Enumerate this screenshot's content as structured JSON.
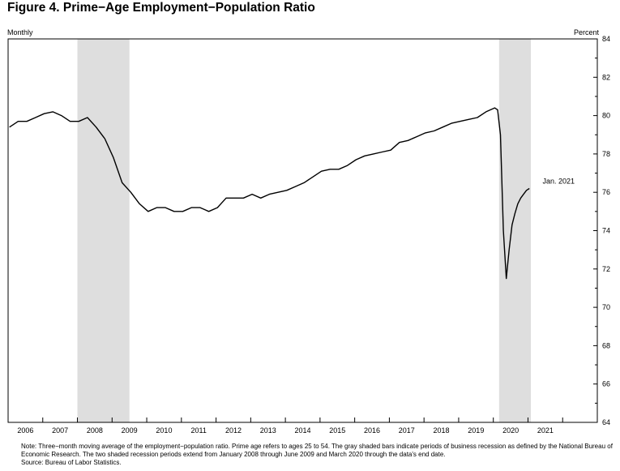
{
  "title": "Figure 4. Prime−Age Employment−Population Ratio",
  "frequency_label": "Monthly",
  "unit_label": "Percent",
  "note": "Note: Three−month moving average of the employment−population ratio. Prime age refers to ages 25 to 54. The gray shaded bars indicate periods of business recession as defined by the National Bureau of Economic Research. The two shaded recession periods extend from January 2008 through June 2009 and March 2020 through the data's end date.",
  "source": "Source: Bureau of Labor Statistics.",
  "colors": {
    "line": "#000000",
    "recession": "#dedede",
    "axis": "#000000"
  },
  "chart_data": {
    "type": "line",
    "title": "Figure 4. Prime−Age Employment−Population Ratio",
    "xlabel": "",
    "ylabel": "Percent",
    "xlim": [
      "2006-01",
      "2022-12"
    ],
    "ylim": [
      64,
      84
    ],
    "y_ticks": [
      64,
      66,
      68,
      70,
      72,
      74,
      76,
      78,
      80,
      82,
      84
    ],
    "x_tick_labels": [
      "2006",
      "2007",
      "2008",
      "2009",
      "2010",
      "2011",
      "2012",
      "2013",
      "2014",
      "2015",
      "2016",
      "2017",
      "2018",
      "2019",
      "2020",
      "2021"
    ],
    "grid": false,
    "recessions": [
      {
        "start": "2008-01",
        "end": "2009-06"
      },
      {
        "start": "2020-03",
        "end": "2021-01"
      }
    ],
    "annotation": {
      "text": "Jan. 2021",
      "x": "2021-01",
      "y": 76.2
    },
    "series": [
      {
        "x": [
          "2006-01",
          "2006-04",
          "2006-07",
          "2006-10",
          "2007-01",
          "2007-04",
          "2007-07",
          "2007-10",
          "2008-01",
          "2008-04",
          "2008-07",
          "2008-10",
          "2009-01",
          "2009-04",
          "2009-07",
          "2009-10",
          "2010-01",
          "2010-04",
          "2010-07",
          "2010-10",
          "2011-01",
          "2011-04",
          "2011-07",
          "2011-10",
          "2012-01",
          "2012-04",
          "2012-07",
          "2012-10",
          "2013-01",
          "2013-04",
          "2013-07",
          "2013-10",
          "2014-01",
          "2014-04",
          "2014-07",
          "2014-10",
          "2015-01",
          "2015-04",
          "2015-07",
          "2015-10",
          "2016-01",
          "2016-04",
          "2016-07",
          "2016-10",
          "2017-01",
          "2017-04",
          "2017-07",
          "2017-10",
          "2018-01",
          "2018-04",
          "2018-07",
          "2018-10",
          "2019-01",
          "2019-04",
          "2019-07",
          "2019-10",
          "2020-01",
          "2020-02",
          "2020-03",
          "2020-04",
          "2020-05",
          "2020-06",
          "2020-07",
          "2020-08",
          "2020-09",
          "2020-10",
          "2020-11",
          "2020-12",
          "2021-01"
        ],
        "values": [
          79.4,
          79.7,
          79.7,
          79.9,
          80.1,
          80.2,
          80.0,
          79.7,
          79.7,
          79.9,
          79.4,
          78.8,
          77.8,
          76.5,
          76.0,
          75.4,
          75.0,
          75.2,
          75.2,
          75.0,
          75.0,
          75.2,
          75.2,
          75.0,
          75.2,
          75.7,
          75.7,
          75.7,
          75.9,
          75.7,
          75.9,
          76.0,
          76.1,
          76.3,
          76.5,
          76.8,
          77.1,
          77.2,
          77.2,
          77.4,
          77.7,
          77.9,
          78.0,
          78.1,
          78.2,
          78.6,
          78.7,
          78.9,
          79.1,
          79.2,
          79.4,
          79.6,
          79.7,
          79.8,
          79.9,
          80.2,
          80.4,
          80.3,
          79.0,
          74.0,
          71.5,
          73.0,
          74.3,
          74.9,
          75.4,
          75.7,
          75.9,
          76.1,
          76.2
        ]
      }
    ]
  }
}
